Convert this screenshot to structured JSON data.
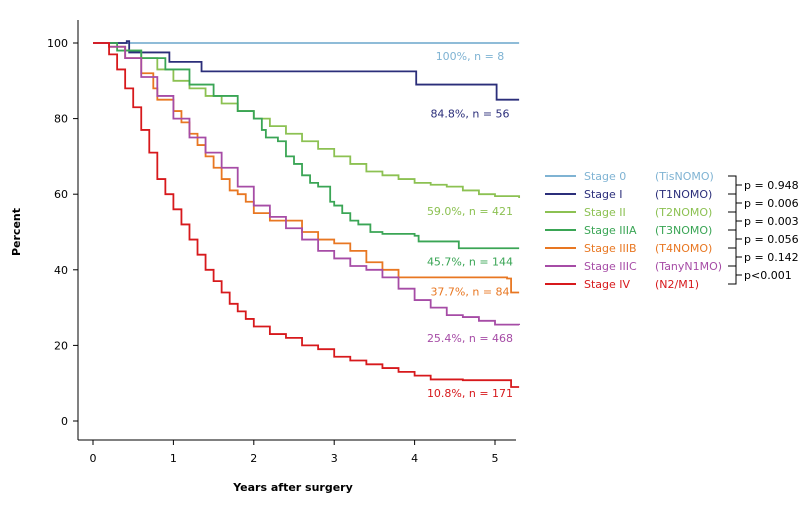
{
  "chart_data": {
    "type": "line",
    "subtype": "kaplan-meier step",
    "title": "",
    "xlabel": "Years after surgery",
    "ylabel": "Percent",
    "xlim": [
      -0.2,
      5.3
    ],
    "ylim": [
      -5,
      105
    ],
    "x_ticks": [
      "0",
      "1",
      "2",
      "3",
      "4",
      "5"
    ],
    "y_ticks": [
      "0",
      "20",
      "40",
      "60",
      "80",
      "100"
    ],
    "grid": false,
    "legend_position": "right",
    "series": [
      {
        "name": "Stage 0",
        "tnm": "(TisNOMO)",
        "end_label": "100%, n = 8",
        "color": "#7fb3d3",
        "points": [
          [
            0,
            100
          ],
          [
            5.3,
            100
          ]
        ]
      },
      {
        "name": "Stage I",
        "tnm": "(T1NOMO)",
        "end_label": "84.8%, n = 56",
        "color": "#2b2e7a",
        "points": [
          [
            0,
            100
          ],
          [
            0.3,
            100
          ],
          [
            0.42,
            100.5
          ],
          [
            0.45,
            97.5
          ],
          [
            0.9,
            97.5
          ],
          [
            0.95,
            95
          ],
          [
            1.33,
            95
          ],
          [
            1.35,
            92.5
          ],
          [
            4.0,
            92.5
          ],
          [
            4.02,
            89
          ],
          [
            5.0,
            89
          ],
          [
            5.02,
            85
          ],
          [
            5.3,
            85
          ]
        ]
      },
      {
        "name": "Stage II",
        "tnm": "(T2NOMO)",
        "end_label": "59.0%, n = 421",
        "color": "#8cc152",
        "points": [
          [
            0,
            100
          ],
          [
            0.2,
            99
          ],
          [
            0.4,
            98
          ],
          [
            0.6,
            96
          ],
          [
            0.8,
            93
          ],
          [
            1.0,
            90
          ],
          [
            1.2,
            88
          ],
          [
            1.4,
            86
          ],
          [
            1.6,
            84
          ],
          [
            1.8,
            82
          ],
          [
            2.0,
            80
          ],
          [
            2.2,
            78
          ],
          [
            2.4,
            76
          ],
          [
            2.6,
            74
          ],
          [
            2.8,
            72
          ],
          [
            3.0,
            70
          ],
          [
            3.2,
            68
          ],
          [
            3.4,
            66
          ],
          [
            3.6,
            65
          ],
          [
            3.8,
            64
          ],
          [
            4.0,
            63
          ],
          [
            4.2,
            62.5
          ],
          [
            4.4,
            62
          ],
          [
            4.6,
            61
          ],
          [
            4.8,
            60
          ],
          [
            5.0,
            59.5
          ],
          [
            5.3,
            59
          ]
        ]
      },
      {
        "name": "Stage IIIA",
        "tnm": "(T3NOMO)",
        "end_label": "45.7%, n = 144",
        "color": "#3aa555",
        "points": [
          [
            0,
            100
          ],
          [
            0.3,
            98
          ],
          [
            0.6,
            96
          ],
          [
            0.9,
            93
          ],
          [
            1.2,
            89
          ],
          [
            1.5,
            86
          ],
          [
            1.8,
            82
          ],
          [
            2.0,
            80
          ],
          [
            2.1,
            77
          ],
          [
            2.15,
            75
          ],
          [
            2.3,
            74
          ],
          [
            2.4,
            70
          ],
          [
            2.5,
            68
          ],
          [
            2.6,
            65
          ],
          [
            2.7,
            63
          ],
          [
            2.8,
            62
          ],
          [
            2.95,
            58
          ],
          [
            3.0,
            57
          ],
          [
            3.1,
            55
          ],
          [
            3.2,
            53
          ],
          [
            3.3,
            52
          ],
          [
            3.45,
            50
          ],
          [
            3.6,
            49.5
          ],
          [
            4.0,
            49
          ],
          [
            4.05,
            47.5
          ],
          [
            4.5,
            47.5
          ],
          [
            4.55,
            45.7
          ],
          [
            5.3,
            45.7
          ]
        ]
      },
      {
        "name": "Stage IIIB",
        "tnm": "(T4NOMO)",
        "end_label": "37.7%, n = 84",
        "color": "#e87722",
        "points": [
          [
            0,
            100
          ],
          [
            0.2,
            99
          ],
          [
            0.4,
            96
          ],
          [
            0.6,
            92
          ],
          [
            0.75,
            88
          ],
          [
            0.8,
            85
          ],
          [
            1.0,
            82
          ],
          [
            1.1,
            79
          ],
          [
            1.2,
            76
          ],
          [
            1.3,
            73
          ],
          [
            1.4,
            70
          ],
          [
            1.5,
            67
          ],
          [
            1.6,
            64
          ],
          [
            1.7,
            61
          ],
          [
            1.8,
            60
          ],
          [
            1.9,
            58
          ],
          [
            2.0,
            55
          ],
          [
            2.2,
            53
          ],
          [
            2.4,
            53
          ],
          [
            2.6,
            50
          ],
          [
            2.8,
            48
          ],
          [
            3.0,
            47
          ],
          [
            3.2,
            45
          ],
          [
            3.4,
            42
          ],
          [
            3.6,
            40
          ],
          [
            3.8,
            38
          ],
          [
            4.0,
            38
          ],
          [
            4.4,
            38
          ],
          [
            4.6,
            38
          ],
          [
            4.8,
            38
          ],
          [
            5.0,
            38
          ],
          [
            5.15,
            37.7
          ],
          [
            5.2,
            34
          ],
          [
            5.3,
            34
          ]
        ]
      },
      {
        "name": "Stage IIIC",
        "tnm": "(TanyN1MO)",
        "end_label": "25.4%, n = 468",
        "color": "#a64ca6",
        "points": [
          [
            0,
            100
          ],
          [
            0.2,
            99
          ],
          [
            0.4,
            96
          ],
          [
            0.6,
            91
          ],
          [
            0.8,
            86
          ],
          [
            1.0,
            80
          ],
          [
            1.2,
            75
          ],
          [
            1.4,
            71
          ],
          [
            1.6,
            67
          ],
          [
            1.8,
            62
          ],
          [
            2.0,
            57
          ],
          [
            2.2,
            54
          ],
          [
            2.4,
            51
          ],
          [
            2.6,
            48
          ],
          [
            2.8,
            45
          ],
          [
            3.0,
            43
          ],
          [
            3.2,
            41
          ],
          [
            3.4,
            40
          ],
          [
            3.6,
            38
          ],
          [
            3.8,
            35
          ],
          [
            4.0,
            32
          ],
          [
            4.2,
            30
          ],
          [
            4.4,
            28
          ],
          [
            4.6,
            27.5
          ],
          [
            4.8,
            26.5
          ],
          [
            5.0,
            25.5
          ],
          [
            5.3,
            25.4
          ]
        ]
      },
      {
        "name": "Stage IV",
        "tnm": "(N2/M1)",
        "end_label": "10.8%, n = 171",
        "color": "#d7191c",
        "points": [
          [
            0,
            100
          ],
          [
            0.2,
            97
          ],
          [
            0.3,
            93
          ],
          [
            0.4,
            88
          ],
          [
            0.5,
            83
          ],
          [
            0.6,
            77
          ],
          [
            0.7,
            71
          ],
          [
            0.8,
            64
          ],
          [
            0.9,
            60
          ],
          [
            1.0,
            56
          ],
          [
            1.1,
            52
          ],
          [
            1.2,
            48
          ],
          [
            1.3,
            44
          ],
          [
            1.4,
            40
          ],
          [
            1.5,
            37
          ],
          [
            1.6,
            34
          ],
          [
            1.7,
            31
          ],
          [
            1.8,
            29
          ],
          [
            1.9,
            27
          ],
          [
            2.0,
            25
          ],
          [
            2.2,
            23
          ],
          [
            2.4,
            22
          ],
          [
            2.6,
            20
          ],
          [
            2.8,
            19
          ],
          [
            3.0,
            17
          ],
          [
            3.2,
            16
          ],
          [
            3.4,
            15
          ],
          [
            3.6,
            14
          ],
          [
            3.8,
            13
          ],
          [
            4.0,
            12
          ],
          [
            4.2,
            11
          ],
          [
            4.6,
            10.8
          ],
          [
            5.0,
            10.8
          ],
          [
            5.2,
            9
          ],
          [
            5.3,
            9
          ]
        ]
      }
    ],
    "end_label_y": [
      100,
      84.8,
      59.0,
      45.7,
      37.7,
      25.4,
      10.8
    ],
    "p_values": [
      "p = 0.948",
      "p = 0.006",
      "p = 0.003",
      "p = 0.056",
      "p = 0.142",
      "p<0.001"
    ]
  }
}
